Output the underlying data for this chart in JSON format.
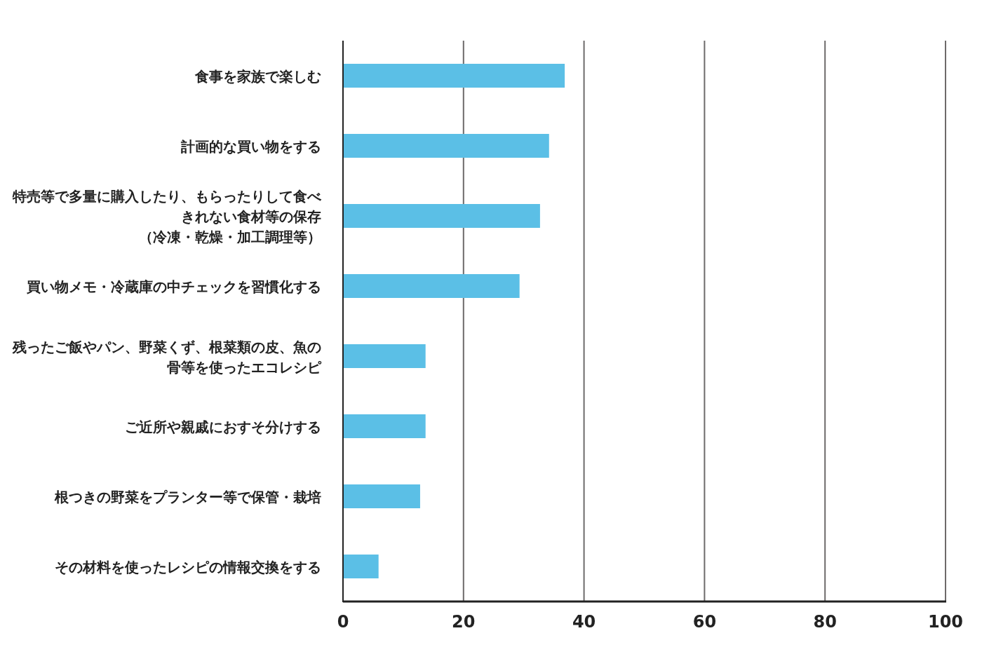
{
  "chart_data": {
    "type": "bar",
    "orientation": "horizontal",
    "categories": [
      "食事を家族で楽しむ",
      "計画的な買い物をする",
      "特売等で多量に購入したり、もらったりして食べきれない食材等の保存（冷凍・乾燥・加工調理等）",
      "買い物メモ・冷蔵庫の中チェックを習慣化する",
      "残ったご飯やパン、野菜くず、根菜類の皮、魚の骨等を使ったエコレシピ",
      "ご近所や親戚におすそ分けする",
      "根つきの野菜をプランター等で保管・栽培",
      "その材料を使ったレシピの情報交換をする"
    ],
    "values": [
      36.8,
      34.2,
      32.7,
      29.3,
      13.7,
      13.7,
      12.8,
      5.9
    ],
    "color": "#5bbfe6",
    "xlim": [
      0,
      100
    ],
    "xticks": [
      0,
      20,
      40,
      60,
      80,
      100
    ],
    "grid": "x"
  }
}
